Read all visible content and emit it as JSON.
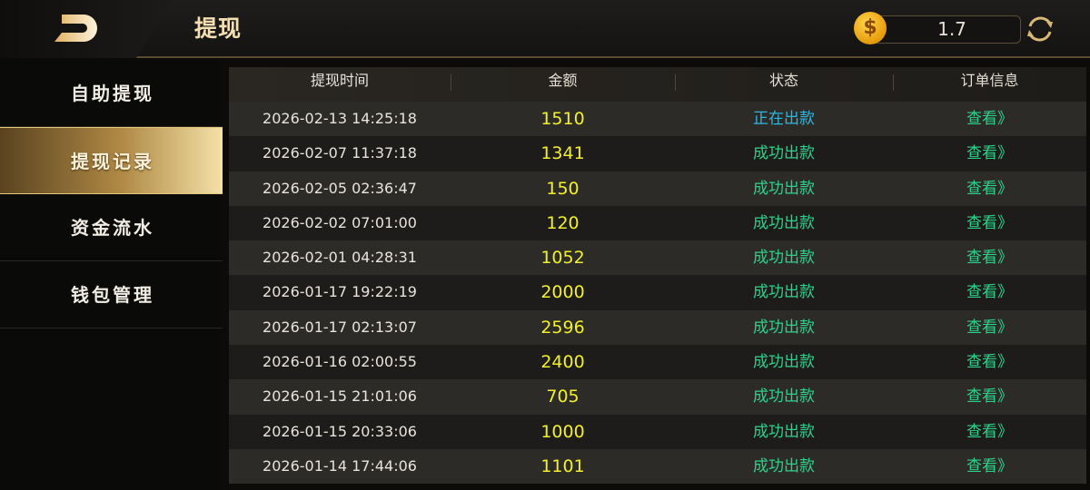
{
  "header": {
    "title": "提现",
    "balance": "1.7",
    "coin_icon": "coin-dollar-icon",
    "refresh_icon": "refresh-icon",
    "back_icon": "back-icon"
  },
  "sidebar": {
    "items": [
      {
        "label": "自助提现",
        "active": false
      },
      {
        "label": "提现记录",
        "active": true
      },
      {
        "label": "资金流水",
        "active": false
      },
      {
        "label": "钱包管理",
        "active": false
      }
    ]
  },
  "table": {
    "columns": [
      "提现时间",
      "金额",
      "状态",
      "订单信息"
    ],
    "rows": [
      {
        "time": "2026-02-13 14:25:18",
        "amount": "1510",
        "status": "正在出款",
        "status_type": "pending",
        "action": "查看》"
      },
      {
        "time": "2026-02-07 11:37:18",
        "amount": "1341",
        "status": "成功出款",
        "status_type": "ok",
        "action": "查看》"
      },
      {
        "time": "2026-02-05 02:36:47",
        "amount": "150",
        "status": "成功出款",
        "status_type": "ok",
        "action": "查看》"
      },
      {
        "time": "2026-02-02 07:01:00",
        "amount": "120",
        "status": "成功出款",
        "status_type": "ok",
        "action": "查看》"
      },
      {
        "time": "2026-02-01 04:28:31",
        "amount": "1052",
        "status": "成功出款",
        "status_type": "ok",
        "action": "查看》"
      },
      {
        "time": "2026-01-17 19:22:19",
        "amount": "2000",
        "status": "成功出款",
        "status_type": "ok",
        "action": "查看》"
      },
      {
        "time": "2026-01-17 02:13:07",
        "amount": "2596",
        "status": "成功出款",
        "status_type": "ok",
        "action": "查看》"
      },
      {
        "time": "2026-01-16 02:00:55",
        "amount": "2400",
        "status": "成功出款",
        "status_type": "ok",
        "action": "查看》"
      },
      {
        "time": "2026-01-15 21:01:06",
        "amount": "705",
        "status": "成功出款",
        "status_type": "ok",
        "action": "查看》"
      },
      {
        "time": "2026-01-15 20:33:06",
        "amount": "1000",
        "status": "成功出款",
        "status_type": "ok",
        "action": "查看》"
      },
      {
        "time": "2026-01-14 17:44:06",
        "amount": "1101",
        "status": "成功出款",
        "status_type": "ok",
        "action": "查看》"
      }
    ]
  },
  "colors": {
    "amount": "#f2f02a",
    "status_ok": "#2fd08a",
    "status_pending": "#2fb6e0",
    "accent_gold": "#f3dfb2"
  }
}
